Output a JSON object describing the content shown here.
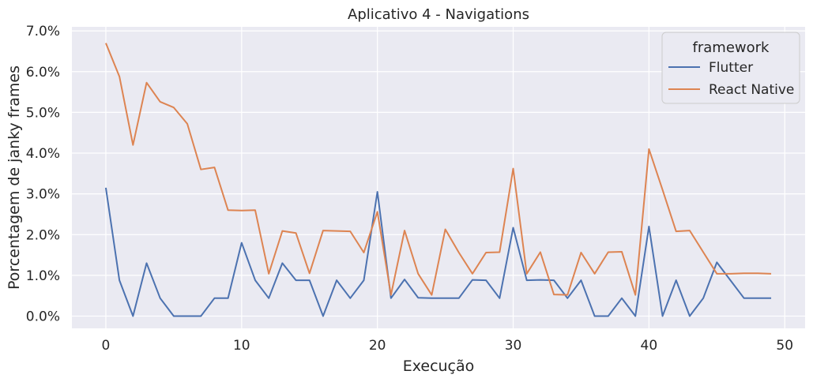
{
  "chart_data": {
    "type": "line",
    "title": "Aplicativo 4 - Navigations",
    "xlabel": "Execução",
    "ylabel": "Porcentagem de janky frames",
    "xlim": [
      -2.5,
      51.5
    ],
    "ylim": [
      -0.3,
      7.1
    ],
    "x_ticks": [
      0,
      10,
      20,
      30,
      40,
      50
    ],
    "x_tick_labels": [
      "0",
      "10",
      "20",
      "30",
      "40",
      "50"
    ],
    "y_ticks": [
      0,
      1,
      2,
      3,
      4,
      5,
      6,
      7
    ],
    "y_tick_labels": [
      "0.0%",
      "1.0%",
      "2.0%",
      "3.0%",
      "4.0%",
      "5.0%",
      "6.0%",
      "7.0%"
    ],
    "grid": true,
    "background": "#eaeaf2",
    "legend": {
      "title": "framework",
      "placement": "top-right"
    },
    "x": [
      0,
      1,
      2,
      3,
      4,
      5,
      6,
      7,
      8,
      9,
      10,
      11,
      12,
      13,
      14,
      15,
      16,
      17,
      18,
      19,
      20,
      21,
      22,
      23,
      24,
      25,
      26,
      27,
      28,
      29,
      30,
      31,
      32,
      33,
      34,
      35,
      36,
      37,
      38,
      39,
      40,
      41,
      42,
      43,
      44,
      45,
      46,
      47,
      48,
      49
    ],
    "series": [
      {
        "name": "Flutter",
        "color": "#4c72b0",
        "values": [
          3.15,
          0.88,
          0.0,
          1.3,
          0.44,
          0.0,
          0.0,
          0.0,
          0.44,
          0.44,
          1.8,
          0.88,
          0.44,
          1.3,
          0.88,
          0.88,
          0.0,
          0.88,
          0.44,
          0.88,
          3.05,
          0.44,
          0.9,
          0.45,
          0.44,
          0.44,
          0.44,
          0.89,
          0.88,
          0.44,
          2.17,
          0.88,
          0.89,
          0.88,
          0.44,
          0.88,
          0.0,
          0.0,
          0.44,
          0.0,
          2.2,
          0.0,
          0.88,
          0.0,
          0.44,
          1.32,
          0.88,
          0.44,
          0.44,
          0.44
        ]
      },
      {
        "name": "React Native",
        "color": "#dd8452",
        "values": [
          6.7,
          5.88,
          4.2,
          5.73,
          5.26,
          5.12,
          4.72,
          3.6,
          3.65,
          2.6,
          2.59,
          2.6,
          1.04,
          2.09,
          2.04,
          1.05,
          2.1,
          2.09,
          2.08,
          1.56,
          2.56,
          0.52,
          2.1,
          1.04,
          0.52,
          2.13,
          1.56,
          1.04,
          1.56,
          1.57,
          3.62,
          1.04,
          1.57,
          0.53,
          0.52,
          1.56,
          1.04,
          1.57,
          1.58,
          0.52,
          4.1,
          3.1,
          2.08,
          2.1,
          1.57,
          1.04,
          1.04,
          1.05,
          1.05,
          1.04
        ]
      }
    ]
  }
}
